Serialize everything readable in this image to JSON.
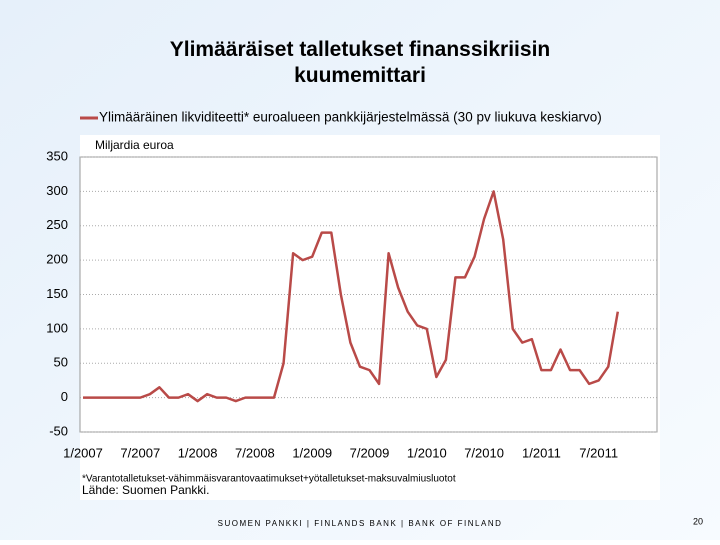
{
  "chart_data": {
    "type": "line",
    "title": "Ylimääräiset talletukset finanssikriisin kuumemittari",
    "y_label": "Miljardia euroa",
    "footnote": "*Varantotalletukset-vähimmäisvarantovaatimukset+yötalletukset-maksuvalmiusluotot",
    "source": "Lähde: Suomen Pankki.",
    "categories": [
      "1/2007",
      null,
      null,
      null,
      null,
      null,
      "7/2007",
      null,
      null,
      null,
      null,
      null,
      "1/2008",
      null,
      null,
      null,
      null,
      null,
      "7/2008",
      null,
      null,
      null,
      null,
      null,
      "1/2009",
      null,
      null,
      null,
      null,
      null,
      "7/2009",
      null,
      null,
      null,
      null,
      null,
      "1/2010",
      null,
      null,
      null,
      null,
      null,
      "7/2010",
      null,
      null,
      null,
      null,
      null,
      "1/2011",
      null,
      null,
      null,
      null,
      null,
      "7/2011",
      null,
      null
    ],
    "series": [
      {
        "name": "Ylimääräinen likviditeetti* euroalueen pankkijärjestelmässä (30 pv liukuva keskiarvo)",
        "color": "#b94a48",
        "values": [
          0,
          0,
          0,
          0,
          0,
          0,
          0,
          5,
          15,
          0,
          0,
          5,
          -5,
          5,
          0,
          0,
          -5,
          0,
          0,
          0,
          0,
          50,
          210,
          200,
          205,
          240,
          240,
          150,
          80,
          45,
          40,
          20,
          210,
          160,
          125,
          105,
          100,
          30,
          55,
          175,
          175,
          205,
          260,
          300,
          230,
          100,
          80,
          85,
          40,
          40,
          70,
          40,
          40,
          20,
          25,
          45,
          125
        ]
      }
    ],
    "ylim": [
      -50,
      350
    ],
    "yticks": [
      -50,
      0,
      50,
      100,
      150,
      200,
      250,
      300,
      350
    ],
    "grid": true
  },
  "footer": "SUOMEN PANKKI | FINLANDS BANK | BANK OF FINLAND",
  "page_number": "20"
}
